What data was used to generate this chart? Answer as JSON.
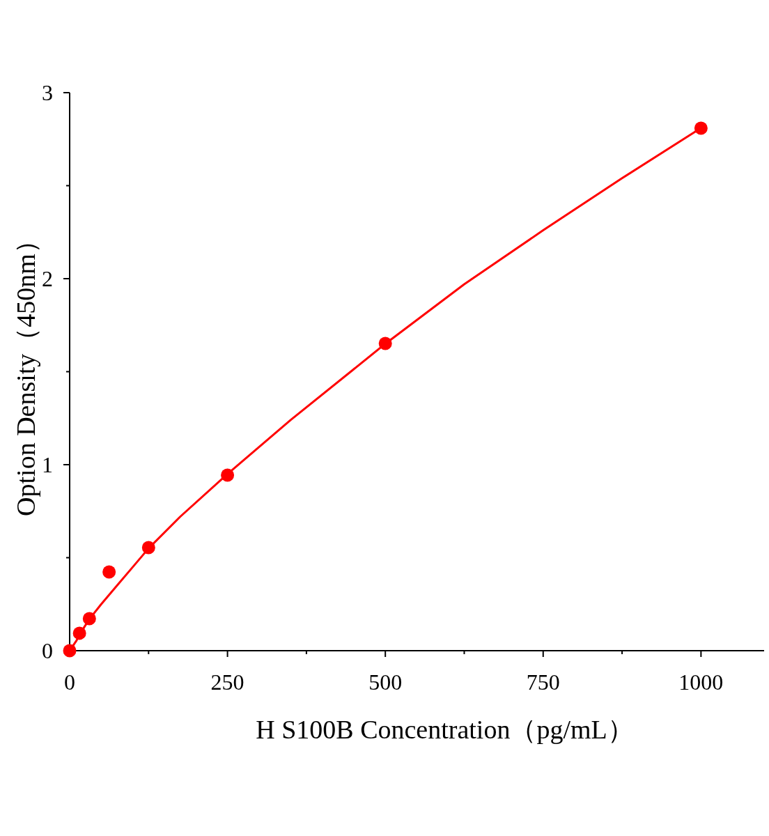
{
  "chart_data": {
    "type": "scatter",
    "xlabel": "H S100B Concentration（pg/mL）",
    "ylabel": "Option Density（450nm）",
    "xlim": [
      0,
      1100
    ],
    "ylim": [
      0,
      3
    ],
    "xticks": [
      0,
      {
        "value": 125,
        "label": null
      },
      250,
      {
        "value": 375,
        "label": null
      },
      500,
      {
        "value": 625,
        "label": null
      },
      750,
      {
        "value": 875,
        "label": null
      },
      1000
    ],
    "yticks": [
      0,
      {
        "value": 0.5,
        "label": null
      },
      1,
      {
        "value": 1.5,
        "label": null
      },
      2,
      {
        "value": 2.5,
        "label": null
      },
      3
    ],
    "series": [
      {
        "marker": "circle",
        "color": "#ff0000",
        "x": [
          0,
          15.6,
          31.25,
          62.5,
          125,
          250,
          500,
          1000
        ],
        "values": [
          0.0,
          0.094,
          0.172,
          0.423,
          0.554,
          0.944,
          1.652,
          2.809
        ]
      },
      {
        "type": "line",
        "marker": "none",
        "color": "#ff0000",
        "x": [
          0,
          10,
          20,
          31.25,
          50,
          75,
          100,
          125,
          175,
          250,
          350,
          500,
          625,
          750,
          875,
          1000
        ],
        "values": [
          0.0,
          0.05,
          0.11,
          0.17,
          0.25,
          0.35,
          0.45,
          0.55,
          0.72,
          0.95,
          1.24,
          1.65,
          1.97,
          2.26,
          2.54,
          2.81
        ]
      }
    ]
  }
}
